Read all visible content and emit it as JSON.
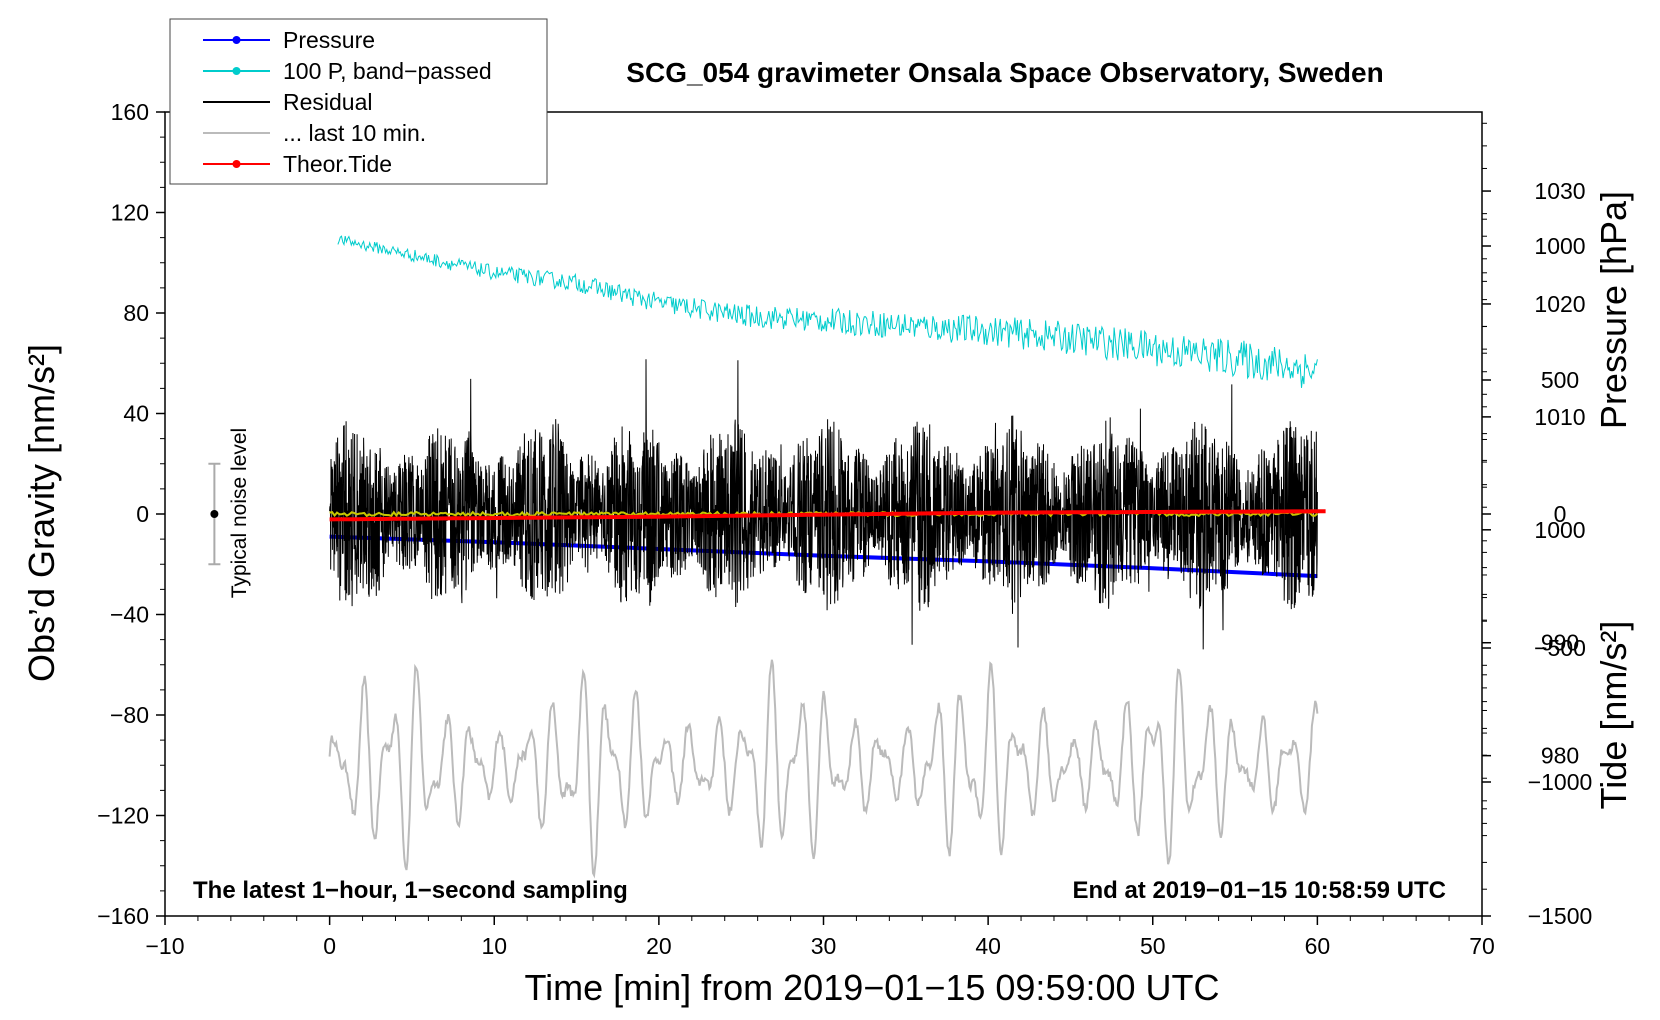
{
  "chart_data": {
    "type": "line",
    "title": "SCG_054 gravimeter Onsala Space Observatory, Sweden",
    "xlabel": "Time [min] from 2019−01−15 09:59:00 UTC",
    "ylabel_left": "Obs’d Gravity [nm/s²]",
    "ylabel_right_pressure": "Pressure [hPa]",
    "ylabel_right_tide": "Tide [nm/s²]",
    "xlim": [
      -10,
      70
    ],
    "ylim": [
      -160,
      160
    ],
    "pressure_axis_range": [
      1037.0,
      965.8
    ],
    "tide_axis_range": [
      -1500,
      1500
    ],
    "x_ticks": [
      "−10",
      "0",
      "10",
      "20",
      "30",
      "40",
      "50",
      "60",
      "70"
    ],
    "y_ticks": [
      "160",
      "120",
      "80",
      "40",
      "0",
      "−40",
      "−80",
      "−120",
      "−160"
    ],
    "pressure_ticks": [
      "1030",
      "1020",
      "1010",
      "1000",
      "990",
      "980"
    ],
    "tide_ticks": [
      "1000",
      "500",
      "0",
      "−500",
      "−1000",
      "−1500"
    ],
    "note_left": "The latest 1−hour, 1−second sampling",
    "note_right": "End at 2019−01−15 10:58:59 UTC",
    "noise_label": "Typical noise level",
    "noise_level": {
      "center": 0,
      "low": -20,
      "high": 20,
      "x": -7
    },
    "legend": [
      {
        "label": "Pressure",
        "color": "#0000ff",
        "marker": true
      },
      {
        "label": "100 P, band−passed",
        "color": "#00cccc",
        "marker": true
      },
      {
        "label": "Residual",
        "color": "#000000",
        "marker": false
      },
      {
        "label": "... last 10 min.",
        "color": "#bbbbbb",
        "marker": false
      },
      {
        "label": "Theor.Tide",
        "color": "#ff0000",
        "marker": true
      }
    ],
    "series": [
      {
        "name": "Pressure",
        "axis": "pressure",
        "color": "#0000ff",
        "x": [
          0,
          10,
          20,
          30,
          40,
          50,
          60
        ],
        "values": [
          999.4,
          998.9,
          998.3,
          997.7,
          997.2,
          996.6,
          995.9
        ]
      },
      {
        "name": "100 P, band−passed",
        "axis": "left",
        "color": "#00cccc",
        "x": [
          0,
          5,
          10,
          15,
          20,
          25,
          30,
          35,
          40,
          45,
          50,
          55,
          60
        ],
        "values": [
          110,
          103,
          96,
          92,
          84,
          79,
          77,
          75,
          73,
          70,
          66,
          62,
          57
        ],
        "noise_amplitude": 4
      },
      {
        "name": "Residual",
        "axis": "left",
        "color": "#000000",
        "x_range": [
          0,
          60
        ],
        "envelope_peak": 68,
        "envelope_low": -65
      },
      {
        "name": "Residual smoothed",
        "axis": "left",
        "color": "#c8c800",
        "x_range": [
          0,
          60
        ],
        "values_level": 0
      },
      {
        "name": "... last 10 min.",
        "axis": "left",
        "color": "#bbbbbb",
        "x_range": [
          0,
          60
        ],
        "center": -100,
        "envelope_high": -55,
        "envelope_low": -150
      },
      {
        "name": "Theor.Tide",
        "axis": "tide",
        "color": "#ff0000",
        "x": [
          0,
          20,
          40,
          60
        ],
        "values": [
          -20,
          -10,
          5,
          10
        ]
      }
    ]
  }
}
